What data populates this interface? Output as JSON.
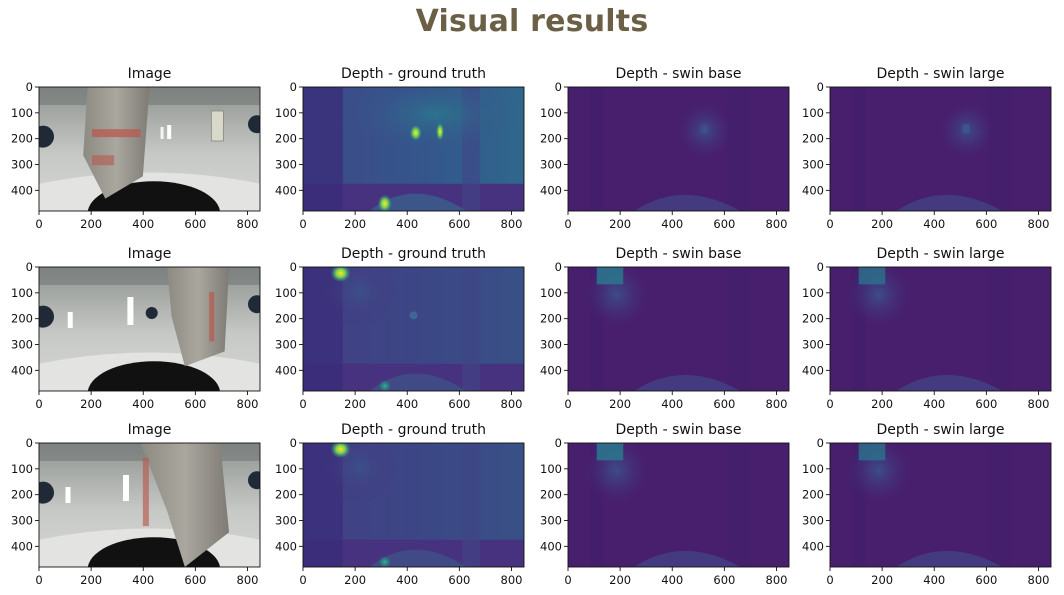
{
  "title": "Visual results",
  "colors": {
    "title": "#6b5f45",
    "viridis_dark": "#450d55",
    "viridis_mid": "#2f6b8e",
    "viridis_bright": "#fde725",
    "photo_wall": "#b6b9b6",
    "photo_dark": "#121212"
  },
  "chart_data": {
    "type": "image_grid",
    "columns": [
      "Image",
      "Depth - ground truth",
      "Depth - swin base",
      "Depth - swin large"
    ],
    "rows": 3,
    "xlim": [
      0,
      848
    ],
    "ylim": [
      480,
      0
    ],
    "xticks": [
      0,
      200,
      400,
      600,
      800
    ],
    "yticks": [
      0,
      100,
      200,
      300,
      400
    ],
    "colormap": "viridis",
    "panels": [
      [
        {
          "title": "Image",
          "kind": "photo"
        },
        {
          "title": "Depth - ground truth",
          "kind": "depth"
        },
        {
          "title": "Depth - swin base",
          "kind": "depth"
        },
        {
          "title": "Depth - swin large",
          "kind": "depth"
        }
      ],
      [
        {
          "title": "Image",
          "kind": "photo"
        },
        {
          "title": "Depth - ground truth",
          "kind": "depth"
        },
        {
          "title": "Depth - swin base",
          "kind": "depth"
        },
        {
          "title": "Depth - swin large",
          "kind": "depth"
        }
      ],
      [
        {
          "title": "Image",
          "kind": "photo"
        },
        {
          "title": "Depth - ground truth",
          "kind": "depth"
        },
        {
          "title": "Depth - swin base",
          "kind": "depth"
        },
        {
          "title": "Depth - swin large",
          "kind": "depth"
        }
      ]
    ]
  }
}
